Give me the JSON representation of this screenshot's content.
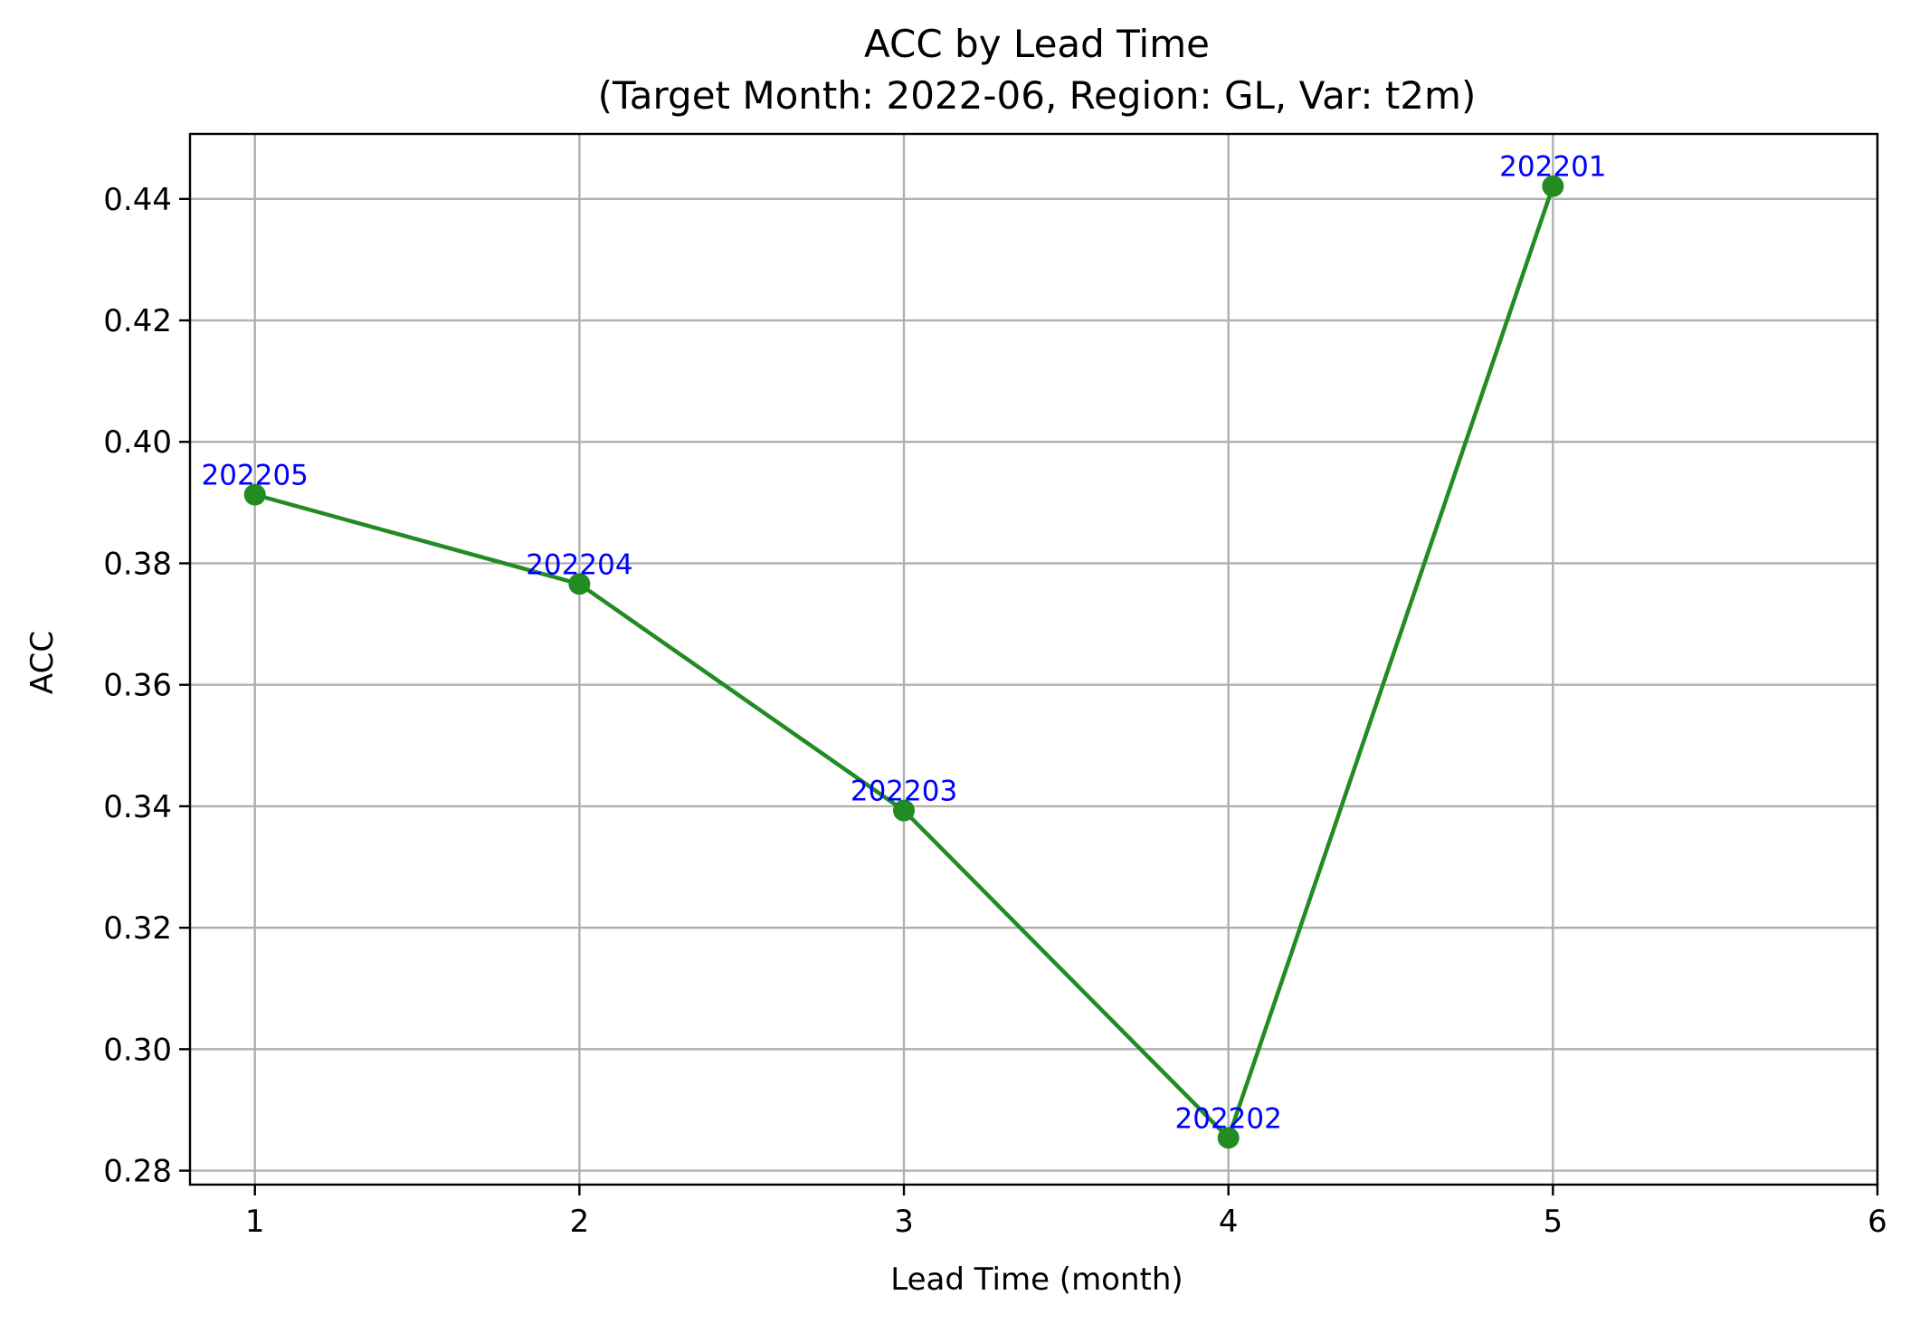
{
  "chart_data": {
    "type": "line",
    "title": "ACC by Lead Time",
    "subtitle": "(Target Month: 2022-06, Region: GL, Var: t2m)",
    "xlabel": "Lead Time (month)",
    "ylabel": "ACC",
    "xlim": [
      0.8,
      6.0
    ],
    "ylim": [
      0.2777,
      0.4507
    ],
    "x_ticks": [
      1,
      2,
      3,
      4,
      5,
      6
    ],
    "y_ticks": [
      0.28,
      0.3,
      0.32,
      0.34,
      0.36,
      0.38,
      0.4,
      0.42,
      0.44
    ],
    "grid": true,
    "legend": null,
    "series": [
      {
        "x": [
          1,
          2,
          3,
          4,
          5
        ],
        "y": [
          0.3913,
          0.3766,
          0.3393,
          0.2854,
          0.4421
        ],
        "labels": [
          "202205",
          "202204",
          "202203",
          "202202",
          "202201"
        ],
        "color": "#228B22",
        "label_color": "#0000FF",
        "marker": "circle"
      }
    ]
  }
}
